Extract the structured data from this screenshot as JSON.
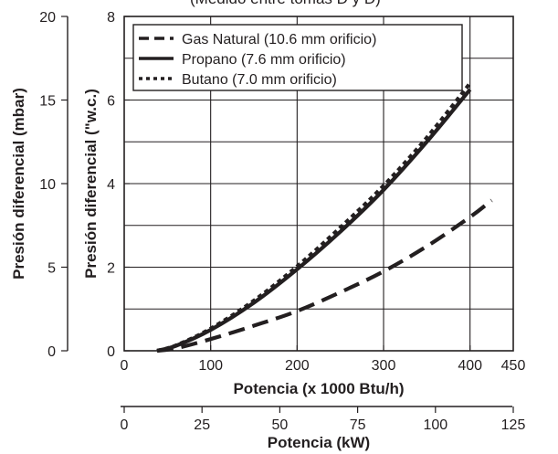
{
  "chart_data": {
    "type": "line",
    "title": "(Medido entre tomas D y D)",
    "xlabel": "Potencia (x 1000 Btu/h)",
    "x2label": "Potencia (kW)",
    "ylabel": "Presión diferencial (\"w.c.)",
    "y2label": "Presión diferencial (mbar)",
    "xlim": [
      0,
      450
    ],
    "ylim": [
      0,
      8
    ],
    "x2lim": [
      0,
      125
    ],
    "y2lim": [
      0,
      20
    ],
    "xticks": [
      "0",
      "100",
      "200",
      "300",
      "400",
      "450"
    ],
    "yticks": [
      "0",
      "2",
      "4",
      "6",
      "8"
    ],
    "x2ticks": [
      "0",
      "25",
      "50",
      "75",
      "100",
      "125"
    ],
    "y2ticks": [
      "0",
      "5",
      "10",
      "15",
      "20"
    ],
    "grid": true,
    "legend_position": "top-left",
    "series": [
      {
        "name": "Gas Natural (10.6 mm orificio)",
        "style": "dashed",
        "x": [
          38,
          60,
          100,
          150,
          200,
          250,
          300,
          350,
          400,
          425
        ],
        "y": [
          0.0,
          0.06,
          0.28,
          0.6,
          0.95,
          1.4,
          1.9,
          2.5,
          3.2,
          3.6
        ]
      },
      {
        "name": "Propano (7.6 mm orificio)",
        "style": "solid",
        "x": [
          38,
          60,
          100,
          150,
          200,
          250,
          300,
          350,
          400
        ],
        "y": [
          0.0,
          0.12,
          0.5,
          1.15,
          1.95,
          2.85,
          3.85,
          5.0,
          6.25
        ]
      },
      {
        "name": "Butano (7.0 mm orificio)",
        "style": "dotted",
        "x": [
          38,
          60,
          100,
          150,
          200,
          250,
          300,
          350,
          400
        ],
        "y": [
          0.0,
          0.13,
          0.53,
          1.2,
          2.02,
          2.95,
          3.95,
          5.1,
          6.4
        ]
      }
    ],
    "colors": {
      "ink": "#231f20",
      "background": "#ffffff"
    }
  }
}
